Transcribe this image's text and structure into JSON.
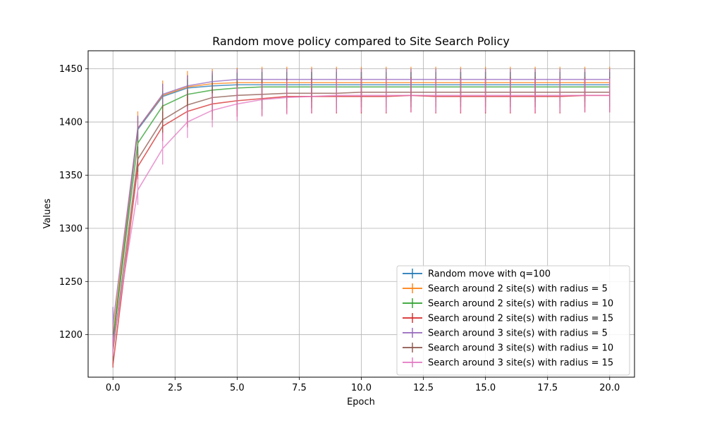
{
  "chart_data": {
    "type": "line",
    "title": "Random move policy compared to Site Search Policy",
    "xlabel": "Epoch",
    "ylabel": "Values",
    "xlim": [
      -1,
      21
    ],
    "ylim": [
      1160,
      1467
    ],
    "xticks": [
      0,
      2.5,
      5,
      7.5,
      10,
      12.5,
      15,
      17.5,
      20
    ],
    "xtick_labels": [
      "0.0",
      "2.5",
      "5.0",
      "7.5",
      "10.0",
      "12.5",
      "15.0",
      "17.5",
      "20.0"
    ],
    "yticks": [
      1200,
      1250,
      1300,
      1350,
      1400,
      1450
    ],
    "ytick_labels": [
      "1200",
      "1250",
      "1300",
      "1350",
      "1400",
      "1450"
    ],
    "grid": true,
    "legend_position": "lower-right",
    "x": [
      0,
      1,
      2,
      3,
      4,
      5,
      6,
      7,
      8,
      9,
      10,
      11,
      12,
      13,
      14,
      15,
      16,
      17,
      18,
      19,
      20
    ],
    "series": [
      {
        "name": "Random move with q=100",
        "color": "#1f77b4",
        "values": [
          1193,
          1393,
          1424,
          1432,
          1434,
          1435,
          1435,
          1435,
          1435,
          1435,
          1435,
          1435,
          1435,
          1435,
          1435,
          1435,
          1435,
          1435,
          1435,
          1435,
          1435
        ],
        "errors": [
          4,
          12,
          12,
          12,
          12,
          12,
          12,
          12,
          12,
          12,
          12,
          12,
          12,
          12,
          12,
          12,
          12,
          12,
          12,
          12,
          12
        ]
      },
      {
        "name": "Search around 2 site(s) with radius = 5",
        "color": "#ff7f0e",
        "values": [
          1200,
          1394,
          1425,
          1433,
          1436,
          1437,
          1437,
          1437,
          1437,
          1437,
          1437,
          1437,
          1437,
          1437,
          1437,
          1437,
          1437,
          1437,
          1437,
          1437,
          1437
        ],
        "errors": [
          4,
          16,
          14,
          15,
          14,
          14,
          15,
          15,
          15,
          15,
          15,
          15,
          15,
          15,
          15,
          15,
          15,
          15,
          15,
          15,
          15
        ]
      },
      {
        "name": "Search around 2 site(s) with radius = 10",
        "color": "#2ca02c",
        "values": [
          1195,
          1380,
          1415,
          1426,
          1430,
          1432,
          1433,
          1433,
          1433,
          1433,
          1433,
          1433,
          1433,
          1433,
          1433,
          1433,
          1433,
          1433,
          1433,
          1433,
          1433
        ],
        "errors": [
          4,
          14,
          14,
          14,
          14,
          14,
          14,
          14,
          14,
          14,
          14,
          14,
          14,
          14,
          14,
          14,
          14,
          14,
          14,
          14,
          14
        ]
      },
      {
        "name": "Search around 2 site(s) with radius = 15",
        "color": "#d62728",
        "values": [
          1172,
          1358,
          1396,
          1410,
          1417,
          1420,
          1422,
          1424,
          1424,
          1424,
          1424,
          1424,
          1425,
          1424,
          1424,
          1424,
          1424,
          1424,
          1424,
          1425,
          1425
        ],
        "errors": [
          3,
          12,
          14,
          15,
          15,
          15,
          16,
          16,
          16,
          16,
          16,
          16,
          16,
          16,
          16,
          16,
          16,
          16,
          16,
          16,
          16
        ]
      },
      {
        "name": "Search around 3 site(s) with radius = 5",
        "color": "#9467bd",
        "values": [
          1210,
          1394,
          1426,
          1434,
          1438,
          1440,
          1440,
          1440,
          1440,
          1440,
          1440,
          1440,
          1440,
          1440,
          1440,
          1440,
          1440,
          1440,
          1440,
          1440,
          1440
        ],
        "errors": [
          16,
          12,
          10,
          10,
          10,
          10,
          10,
          10,
          10,
          10,
          10,
          10,
          10,
          10,
          10,
          10,
          10,
          10,
          10,
          10,
          10
        ]
      },
      {
        "name": "Search around 3 site(s) with radius = 10",
        "color": "#8c564b",
        "values": [
          1185,
          1365,
          1402,
          1416,
          1423,
          1425,
          1426,
          1427,
          1427,
          1427,
          1428,
          1428,
          1428,
          1428,
          1428,
          1428,
          1428,
          1428,
          1428,
          1428,
          1428
        ],
        "errors": [
          10,
          12,
          14,
          14,
          14,
          14,
          14,
          14,
          14,
          14,
          14,
          14,
          14,
          14,
          14,
          14,
          14,
          14,
          14,
          14,
          14
        ]
      },
      {
        "name": "Search around 3 site(s) with radius = 15",
        "color": "#e377c2",
        "values": [
          1190,
          1336,
          1375,
          1400,
          1411,
          1417,
          1421,
          1423,
          1424,
          1425,
          1425,
          1425,
          1425,
          1425,
          1425,
          1425,
          1425,
          1425,
          1425,
          1425,
          1425
        ],
        "errors": [
          10,
          14,
          15,
          15,
          16,
          16,
          16,
          16,
          16,
          16,
          16,
          16,
          16,
          16,
          16,
          16,
          16,
          16,
          16,
          16,
          16
        ]
      }
    ]
  }
}
